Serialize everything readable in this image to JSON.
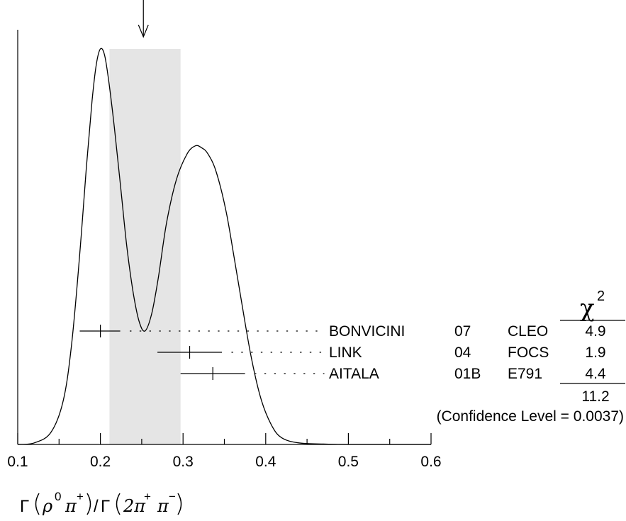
{
  "chart_data": {
    "type": "ideogram",
    "xlim": [
      0.1,
      0.6
    ],
    "x_ticks": [
      "0.1",
      "0.2",
      "0.3",
      "0.4",
      "0.5",
      "0.6"
    ],
    "x_tick_values": [
      0.1,
      0.2,
      0.3,
      0.4,
      0.5,
      0.6
    ],
    "average_arrow": 0.252,
    "error_band": [
      0.211,
      0.297
    ],
    "curve_peaks": [
      {
        "x": 0.2,
        "height": 1.0
      },
      {
        "x": 0.3225,
        "height": 0.75
      },
      {
        "x": 0.254,
        "height": 0.287
      }
    ],
    "measurements": [
      {
        "name": "BONVICINI",
        "year": "07",
        "experiment": "CLEO",
        "chi2": "4.9",
        "value": 0.2,
        "low": 0.175,
        "high": 0.224
      },
      {
        "name": "LINK",
        "year": "04",
        "experiment": "FOCS",
        "chi2": "1.9",
        "value": 0.308,
        "low": 0.269,
        "high": 0.347
      },
      {
        "name": "AITALA",
        "year": "01B",
        "experiment": "E791",
        "chi2": "4.4",
        "value": 0.336,
        "low": 0.297,
        "high": 0.375
      }
    ],
    "chi2_header": "χ",
    "chi2_superscript": "2",
    "chi2_total": "11.2",
    "confidence_level": "(Confidence Level = 0.0037)"
  },
  "xlabel": {
    "gamma1": "Γ",
    "rho": "ρ",
    "rho_sup": "0",
    "pi1": "π",
    "pi1_sup": "+",
    "slash": "/",
    "gamma2": "Γ",
    "two_pi": "2π",
    "two_pi_sup": "+",
    "pi2": "π",
    "pi2_sup": "−"
  }
}
